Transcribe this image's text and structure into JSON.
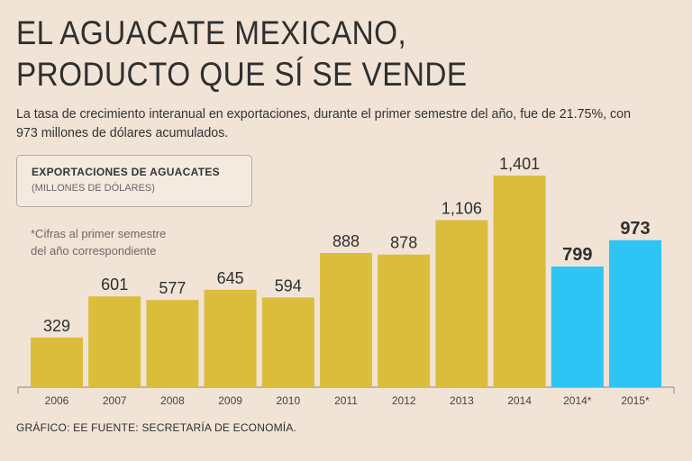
{
  "page": {
    "title_line1": "EL AGUACATE MEXICANO,",
    "title_line2": "PRODUCTO QUE SÍ SE VENDE",
    "subtitle": "La tasa de crecimiento interanual en exportaciones, durante el primer semestre del año, fue de 21.75%, con 973 millones de dólares acumulados.",
    "box_title": "EXPORTACIONES DE AGUACATES",
    "box_units": "(MILLONES DE DÓLARES)",
    "note_line1": "*Cifras al primer semestre",
    "note_line2": "del año correspondiente",
    "source": "GRÁFICO: EE  FUENTE: SECRETARÍA DE ECONOMÍA."
  },
  "colors": {
    "full_year": "#dbbd3c",
    "first_semester": "#2ec4f3",
    "axis": "#8a8580",
    "label": "#2f2f2f"
  },
  "chart_data": {
    "type": "bar",
    "title": "EXPORTACIONES DE AGUACATES",
    "ylabel": "(MILLONES DE DÓLARES)",
    "xlabel": "",
    "ylim": [
      0,
      1550
    ],
    "categories": [
      "2006",
      "2007",
      "2008",
      "2009",
      "2010",
      "2011",
      "2012",
      "2013",
      "2014",
      "2014*",
      "2015*"
    ],
    "values": [
      329,
      601,
      577,
      645,
      594,
      888,
      878,
      1106,
      1401,
      799,
      973
    ],
    "value_labels": [
      "329",
      "601",
      "577",
      "645",
      "594",
      "888",
      "878",
      "1,106",
      "1,401",
      "799",
      "973"
    ],
    "highlight": [
      false,
      false,
      false,
      false,
      false,
      false,
      false,
      false,
      false,
      true,
      true
    ],
    "legend": "none",
    "grid": false
  }
}
